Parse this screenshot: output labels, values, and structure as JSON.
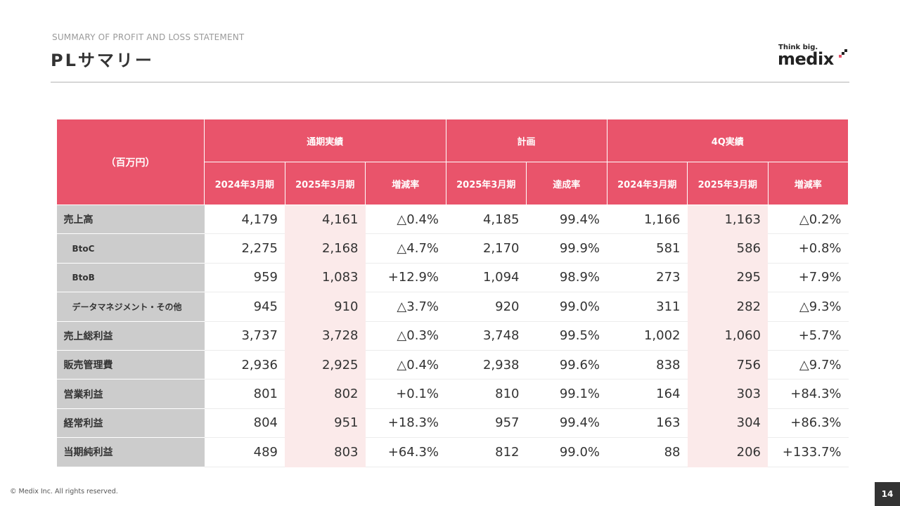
{
  "header": {
    "subtitle": "SUMMARY OF PROFIT AND LOSS STATEMENT",
    "title": "PLサマリー"
  },
  "logo": {
    "tagline": "Think big.",
    "wordmark": "medix"
  },
  "table": {
    "unit_label": "（百万円）",
    "group_headers": [
      "通期実績",
      "計画",
      "4Q実績"
    ],
    "column_headers": [
      "2024年3月期",
      "2025年3月期",
      "増減率",
      "2025年3月期",
      "達成率",
      "2024年3月期",
      "2025年3月期",
      "増減率"
    ],
    "rows": [
      {
        "label": "売上高",
        "sub": false,
        "values": [
          "4,179",
          "4,161",
          "△0.4%",
          "4,185",
          "99.4%",
          "1,166",
          "1,163",
          "△0.2%"
        ]
      },
      {
        "label": "BtoC",
        "sub": true,
        "values": [
          "2,275",
          "2,168",
          "△4.7%",
          "2,170",
          "99.9%",
          "581",
          "586",
          "+0.8%"
        ]
      },
      {
        "label": "BtoB",
        "sub": true,
        "values": [
          "959",
          "1,083",
          "+12.9%",
          "1,094",
          "98.9%",
          "273",
          "295",
          "+7.9%"
        ]
      },
      {
        "label": "データマネジメント・その他",
        "sub": true,
        "values": [
          "945",
          "910",
          "△3.7%",
          "920",
          "99.0%",
          "311",
          "282",
          "△9.3%"
        ]
      },
      {
        "label": "売上総利益",
        "sub": false,
        "values": [
          "3,737",
          "3,728",
          "△0.3%",
          "3,748",
          "99.5%",
          "1,002",
          "1,060",
          "+5.7%"
        ]
      },
      {
        "label": "販売管理費",
        "sub": false,
        "values": [
          "2,936",
          "2,925",
          "△0.4%",
          "2,938",
          "99.6%",
          "838",
          "756",
          "△9.7%"
        ]
      },
      {
        "label": "営業利益",
        "sub": false,
        "values": [
          "801",
          "802",
          "+0.1%",
          "810",
          "99.1%",
          "164",
          "303",
          "+84.3%"
        ]
      },
      {
        "label": "経常利益",
        "sub": false,
        "values": [
          "804",
          "951",
          "+18.3%",
          "957",
          "99.4%",
          "163",
          "304",
          "+86.3%"
        ]
      },
      {
        "label": "当期純利益",
        "sub": false,
        "values": [
          "489",
          "803",
          "+64.3%",
          "812",
          "99.0%",
          "88",
          "206",
          "+133.7%"
        ]
      }
    ]
  },
  "footer": {
    "copyright": "© Medix Inc. All rights reserved.",
    "page_number": "14"
  },
  "colors": {
    "header_accent": "#e9546b",
    "highlight_cell": "#fbeaea",
    "label_cell": "#cccccc"
  }
}
